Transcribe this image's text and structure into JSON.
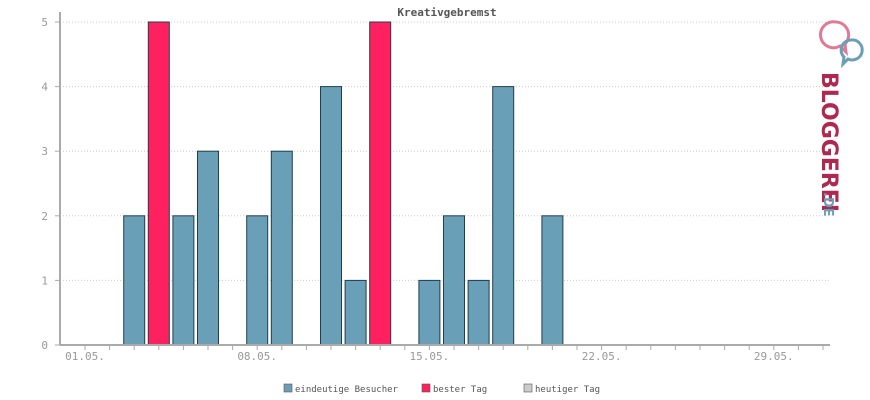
{
  "chart_data": {
    "type": "bar",
    "title": "Kreativgebremst",
    "xlabel": "",
    "ylabel": "",
    "ylim": [
      0,
      5
    ],
    "yticks": [
      0,
      1,
      2,
      3,
      4,
      5
    ],
    "x_tick_labels": [
      {
        "day": 1,
        "label": "01.05."
      },
      {
        "day": 8,
        "label": "08.05."
      },
      {
        "day": 15,
        "label": "15.05."
      },
      {
        "day": 22,
        "label": "22.05."
      },
      {
        "day": 29,
        "label": "29.05."
      }
    ],
    "days": 31,
    "series": [
      {
        "name": "eindeutige Besucher",
        "color": "#6a9fb8",
        "points": [
          {
            "day": 3,
            "value": 2
          },
          {
            "day": 5,
            "value": 2
          },
          {
            "day": 6,
            "value": 3
          },
          {
            "day": 8,
            "value": 2
          },
          {
            "day": 9,
            "value": 3
          },
          {
            "day": 11,
            "value": 4
          },
          {
            "day": 12,
            "value": 1
          },
          {
            "day": 15,
            "value": 1
          },
          {
            "day": 16,
            "value": 2
          },
          {
            "day": 17,
            "value": 1
          },
          {
            "day": 18,
            "value": 4
          },
          {
            "day": 20,
            "value": 2
          }
        ]
      },
      {
        "name": "bester Tag",
        "color": "#ff2060",
        "points": [
          {
            "day": 4,
            "value": 5
          },
          {
            "day": 13,
            "value": 5
          }
        ]
      },
      {
        "name": "heutiger Tag",
        "color": "#cccccc",
        "points": []
      }
    ],
    "grid": true,
    "legend_position": "bottom-center"
  },
  "logo": {
    "text_main": "BLOGGEREI",
    "text_suffix": ".DE",
    "icon": "speech-bubbles-icon",
    "color_main": "#b0284f",
    "color_suffix": "#6a9fb8"
  }
}
